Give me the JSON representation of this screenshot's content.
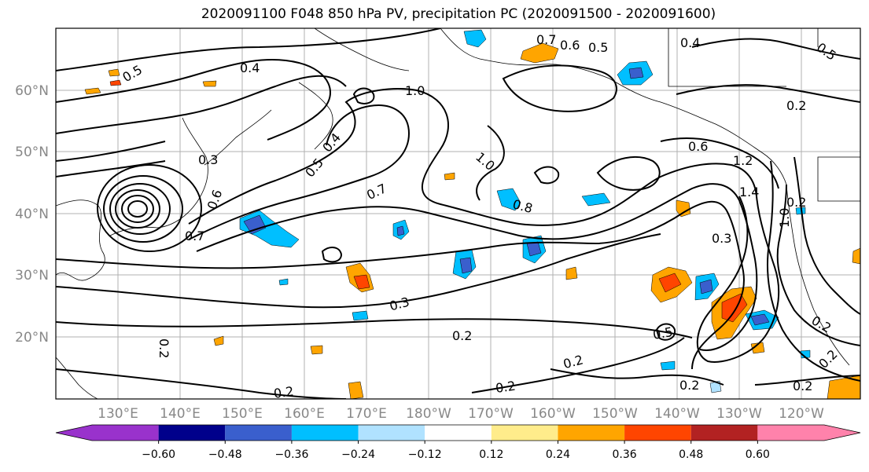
{
  "title": "2020091100 F048 850 hPa PV, precipitation PC (2020091500 - 2020091600)",
  "lon_labels": [
    "130°E",
    "140°E",
    "150°E",
    "160°E",
    "170°E",
    "180°W",
    "170°W",
    "160°W",
    "150°W",
    "140°W",
    "130°W",
    "120°W"
  ],
  "lat_labels": [
    "60°N",
    "50°N",
    "40°N",
    "30°N",
    "20°N"
  ],
  "colorbar": {
    "colors": [
      "#9932CC",
      "#00008B",
      "#3A5FCD",
      "#00BFFF",
      "#B0E2FF",
      "#FFFFFF",
      "#FFEC8B",
      "#FFA500",
      "#FF4500",
      "#B22222",
      "#FF82AB"
    ],
    "ticks": [
      "−0.60",
      "−0.48",
      "−0.36",
      "−0.24",
      "−0.12",
      "0.12",
      "0.24",
      "0.36",
      "0.48",
      "0.60"
    ]
  },
  "contour_labels": [
    {
      "text": "0.4"
    },
    {
      "text": "1.0"
    },
    {
      "text": "0.5"
    },
    {
      "text": "0.4"
    },
    {
      "text": "0.7"
    },
    {
      "text": "0.6"
    },
    {
      "text": "0.5"
    },
    {
      "text": "0.4"
    },
    {
      "text": "0.5"
    },
    {
      "text": "0.5"
    },
    {
      "text": "0.2"
    },
    {
      "text": "0.3"
    },
    {
      "text": "0.6"
    },
    {
      "text": "0.7"
    },
    {
      "text": "0.8"
    },
    {
      "text": "0.7"
    },
    {
      "text": "1.0"
    },
    {
      "text": "0.6"
    },
    {
      "text": "1.2"
    },
    {
      "text": "1.4"
    },
    {
      "text": "1.0"
    },
    {
      "text": "0.2"
    },
    {
      "text": "0.3"
    },
    {
      "text": "0.3"
    },
    {
      "text": "0.2"
    },
    {
      "text": "0.2"
    },
    {
      "text": "0.5"
    },
    {
      "text": "0.2"
    },
    {
      "text": "0.2"
    },
    {
      "text": "0.2"
    },
    {
      "text": "0.2"
    },
    {
      "text": "0.2"
    },
    {
      "text": "0.2"
    },
    {
      "text": "0.2"
    }
  ],
  "pc_levels": {
    "positive_high": "#FF4500",
    "positive_mid": "#FFA500",
    "positive_low": "#FFEC8B",
    "negative_high": "#3A5FCD",
    "negative_mid": "#00BFFF",
    "negative_low": "#B0E2FF"
  }
}
